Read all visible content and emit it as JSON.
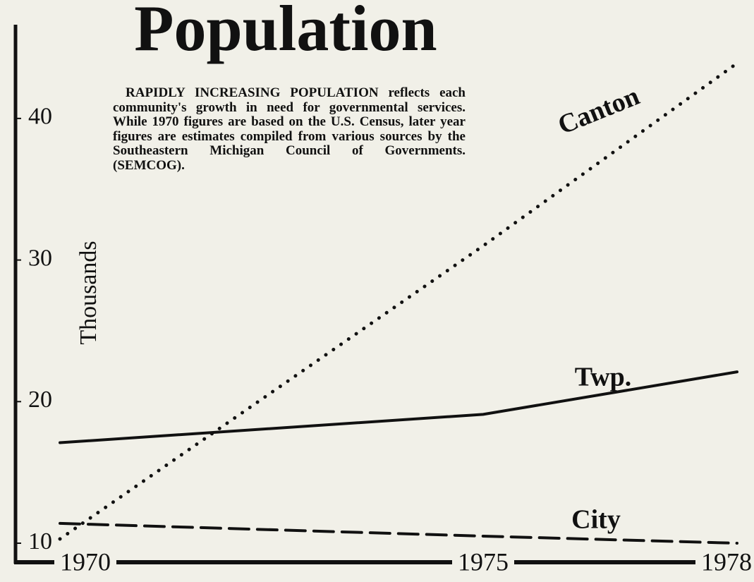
{
  "chart_data": {
    "type": "line",
    "title": "Population",
    "subtitle": "RAPIDLY INCREASING POPULATION reflects each community's growth in need for governmental services. While 1970 figures are based on the U.S. Census, later year figures are estimates compiled from various sources by the Southeastern Michigan Council of Governments. (SEMCOG).",
    "y_label": "Thousands",
    "x": [
      1970,
      1975,
      1978
    ],
    "series": [
      {
        "name": "Canton",
        "color": "#111111",
        "dash": "dotted",
        "values": [
          10.3,
          31,
          43.9
        ]
      },
      {
        "name": "Twp.",
        "color": "#111111",
        "dash": "solid",
        "values": [
          17.1,
          19.1,
          22.1
        ]
      },
      {
        "name": "City",
        "color": "#111111",
        "dash": "dashed",
        "values": [
          11.4,
          10.5,
          10.0
        ]
      }
    ],
    "xlim": [
      1970,
      1978
    ],
    "xticks": [
      1970,
      1975,
      1978
    ],
    "ylim": [
      8.7,
      46.6
    ],
    "yticks": [
      10,
      20,
      30,
      40
    ],
    "grid": false
  }
}
